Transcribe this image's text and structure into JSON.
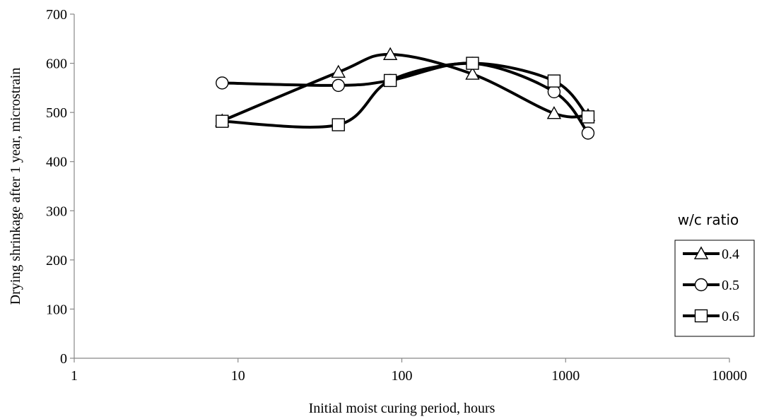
{
  "chart_data": {
    "type": "line",
    "xlabel": "Initial moist curing period, hours",
    "ylabel": "Drying shrinkage after 1 year, microstrain",
    "x_scale": "log",
    "xlim": [
      1,
      10000
    ],
    "ylim": [
      0,
      700
    ],
    "x_ticks": [
      "1",
      "10",
      "100",
      "1000",
      "10000"
    ],
    "y_ticks": [
      "0",
      "100",
      "200",
      "300",
      "400",
      "500",
      "600",
      "700"
    ],
    "grid": false,
    "legend": {
      "title": "w/c ratio",
      "placement": "right"
    },
    "series": [
      {
        "name": "0.4",
        "marker": "triangle",
        "x": [
          8,
          41,
          85,
          270,
          850,
          1370
        ],
        "y": [
          483,
          582,
          618,
          578,
          498,
          494
        ]
      },
      {
        "name": "0.5",
        "marker": "circle",
        "x": [
          8,
          41,
          85,
          270,
          850,
          1370
        ],
        "y": [
          560,
          555,
          565,
          600,
          542,
          458
        ]
      },
      {
        "name": "0.6",
        "marker": "square",
        "x": [
          8,
          41,
          85,
          270,
          850,
          1370
        ],
        "y": [
          482,
          475,
          565,
          600,
          564,
          491
        ]
      }
    ]
  }
}
